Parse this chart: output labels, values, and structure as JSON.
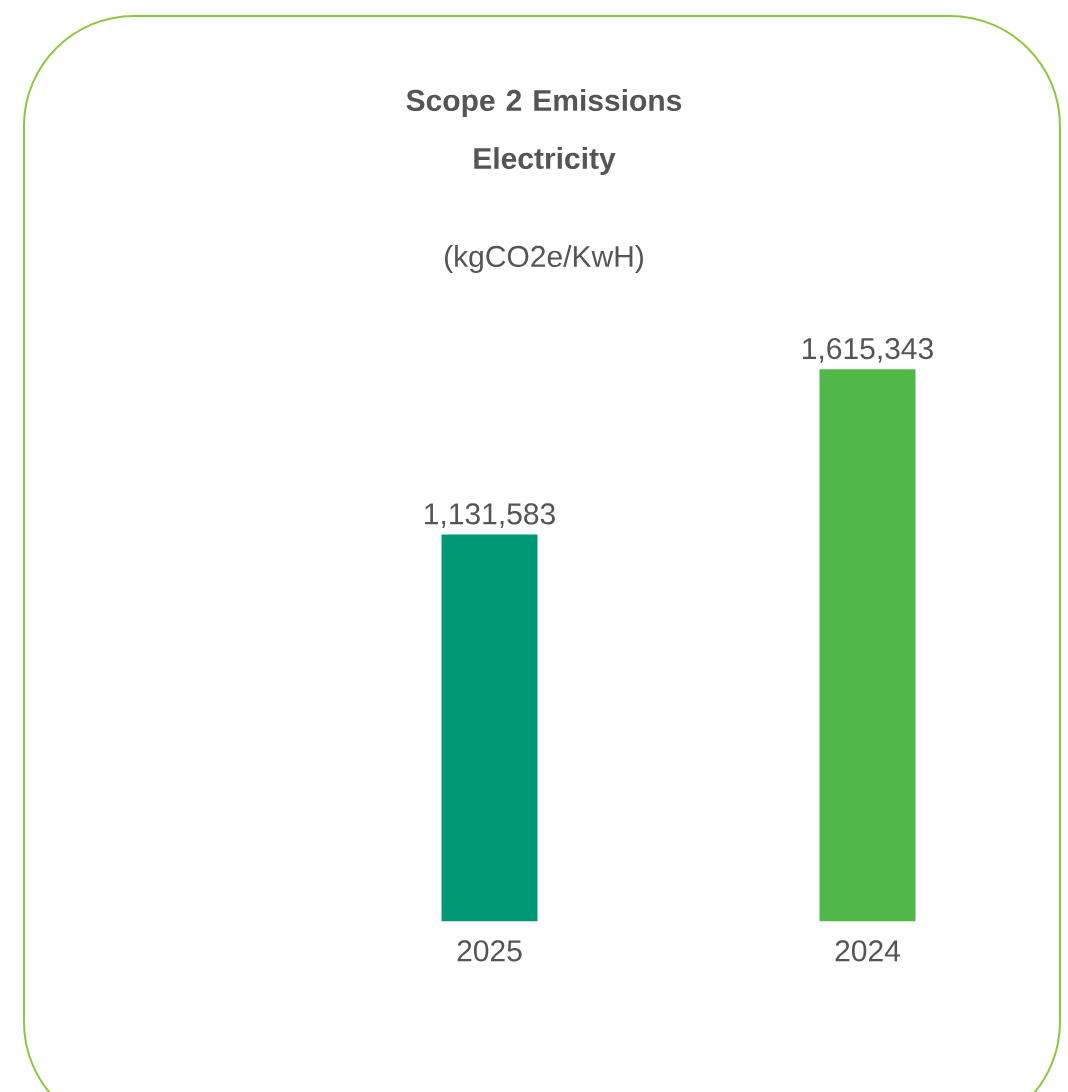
{
  "chart_data": {
    "type": "bar",
    "title": "Scope 2 Emissions Electricity",
    "subtitle": "(kgCO2e/KwH)",
    "categories": [
      "2025",
      "2024"
    ],
    "values": [
      1131583,
      1615343
    ],
    "colors": [
      "#009874",
      "#50b848"
    ],
    "value_labels": [
      "1,131,583",
      "1,615,343"
    ]
  }
}
